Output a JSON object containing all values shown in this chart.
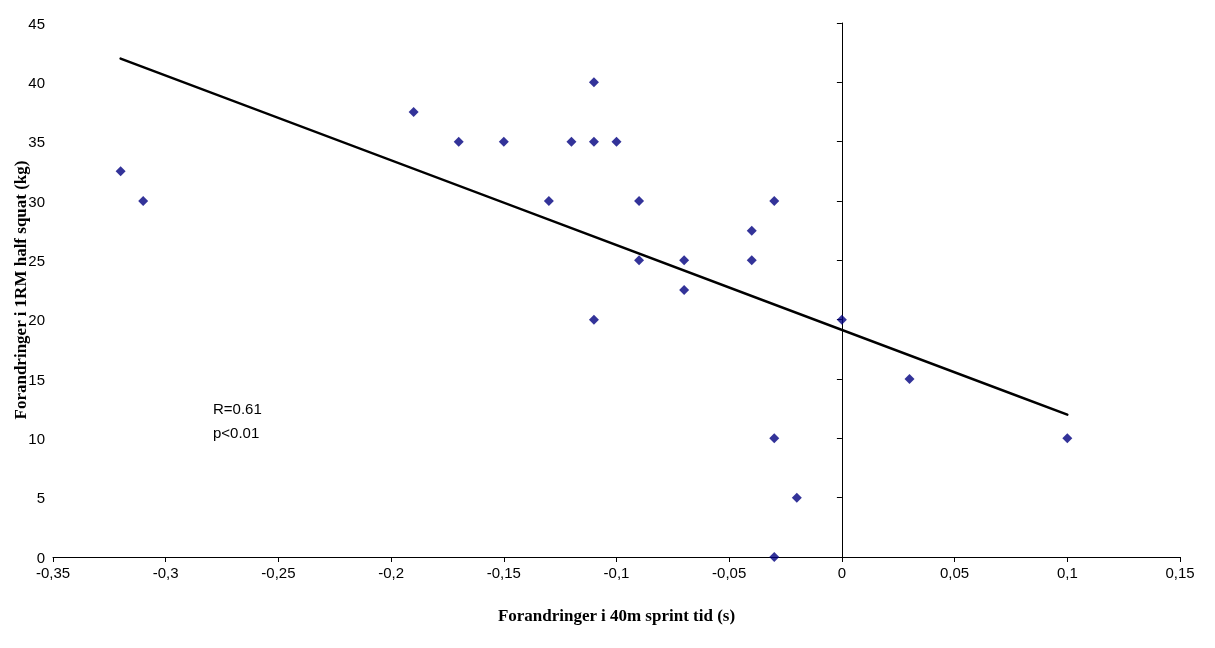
{
  "chart_data": {
    "type": "scatter",
    "xlabel": "Forandringer i 40m sprint tid (s)",
    "ylabel": "Forandringer i 1RM half squat (kg)",
    "annotations": [
      "R=0.61\np<0.01"
    ],
    "xlim": [
      -0.35,
      0.15
    ],
    "xticks": [
      {
        "value": -0.35,
        "label": "-0,35"
      },
      {
        "value": -0.3,
        "label": "-0,3"
      },
      {
        "value": -0.25,
        "label": "-0,25"
      },
      {
        "value": -0.2,
        "label": "-0,2"
      },
      {
        "value": -0.15,
        "label": "-0,15"
      },
      {
        "value": -0.1,
        "label": "-0,1"
      },
      {
        "value": -0.05,
        "label": "-0,05"
      },
      0,
      {
        "value": 0.05,
        "label": "0,05"
      },
      {
        "value": 0.1,
        "label": "0,1"
      },
      {
        "value": 0.15,
        "label": "0,15"
      }
    ],
    "ylim": [
      0,
      45
    ],
    "yticks": [
      0,
      5,
      10,
      15,
      20,
      25,
      30,
      35,
      40,
      45
    ],
    "series": [
      {
        "color": "#000080",
        "marker": "diamond",
        "x": [
          -0.32,
          -0.31,
          -0.19,
          -0.17,
          -0.15,
          -0.13,
          -0.12,
          -0.11,
          -0.11,
          -0.11,
          -0.1,
          -0.09,
          -0.09,
          -0.07,
          -0.07,
          -0.04,
          -0.04,
          -0.03,
          -0.03,
          -0.03,
          -0.02,
          0,
          0.03,
          0.1
        ],
        "values": [
          32.5,
          30,
          37.5,
          35,
          35,
          30,
          35,
          40,
          35,
          20,
          35,
          30,
          25,
          25,
          22.5,
          27.5,
          25,
          30,
          10,
          0,
          5,
          20,
          15,
          10
        ]
      },
      {
        "type": "line",
        "color": "#000000",
        "marker": "none",
        "line_style": "solid",
        "x": [
          -0.32,
          0.1
        ],
        "values": [
          42,
          12
        ]
      }
    ]
  }
}
